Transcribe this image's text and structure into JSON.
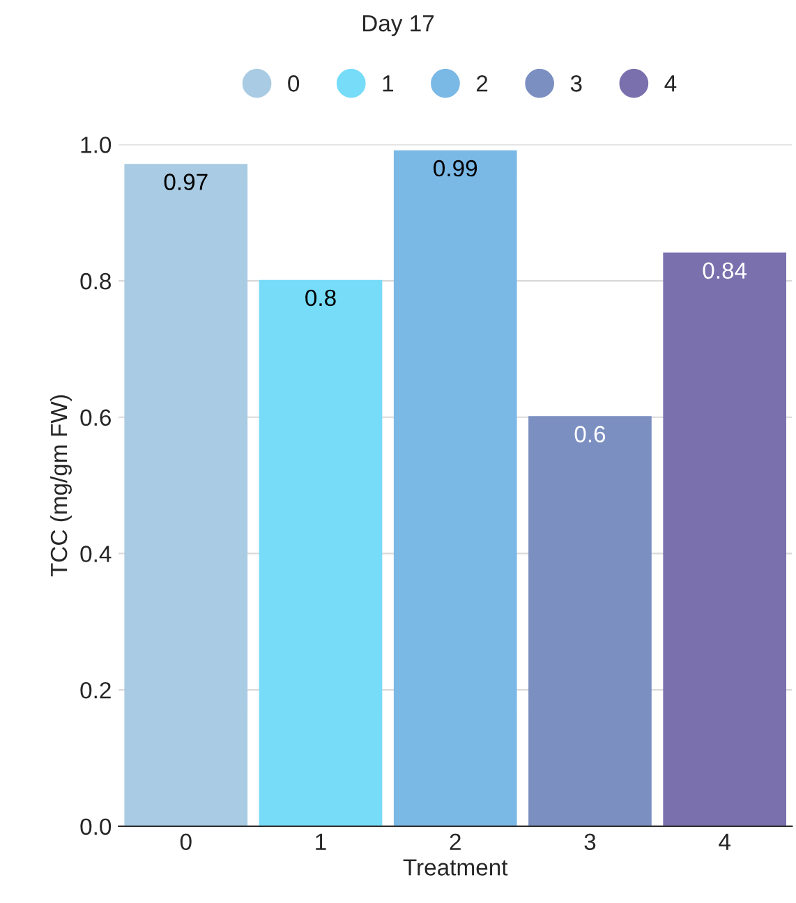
{
  "chart_data": {
    "type": "bar",
    "title": "Day 17",
    "xlabel": "Treatment",
    "ylabel": "TCC (mg/gm FW)",
    "categories": [
      "0",
      "1",
      "2",
      "3",
      "4"
    ],
    "series": [
      {
        "name": "0",
        "color": "#a9cbe3",
        "values": [
          0.97,
          null,
          null,
          null,
          null
        ]
      },
      {
        "name": "1",
        "color": "#76dcf8",
        "values": [
          null,
          0.8,
          null,
          null,
          null
        ]
      },
      {
        "name": "2",
        "color": "#7ab8e6",
        "values": [
          null,
          null,
          0.99,
          null,
          null
        ]
      },
      {
        "name": "3",
        "color": "#7b8fc1",
        "values": [
          null,
          null,
          null,
          0.6,
          null
        ]
      },
      {
        "name": "4",
        "color": "#7a70ad",
        "values": [
          null,
          null,
          null,
          null,
          0.84
        ]
      }
    ],
    "ylim": [
      0,
      1.0
    ],
    "yticks": [
      {
        "value": 0,
        "label": "0.0"
      },
      {
        "value": 0.2,
        "label": "0.2"
      },
      {
        "value": 0.4,
        "label": "0.4"
      },
      {
        "value": 0.6,
        "label": "0.6"
      },
      {
        "value": 0.8,
        "label": "0.8"
      },
      {
        "value": 1.0,
        "label": "1.0"
      }
    ],
    "grid": "y",
    "legend": "top",
    "data_labels": true
  }
}
